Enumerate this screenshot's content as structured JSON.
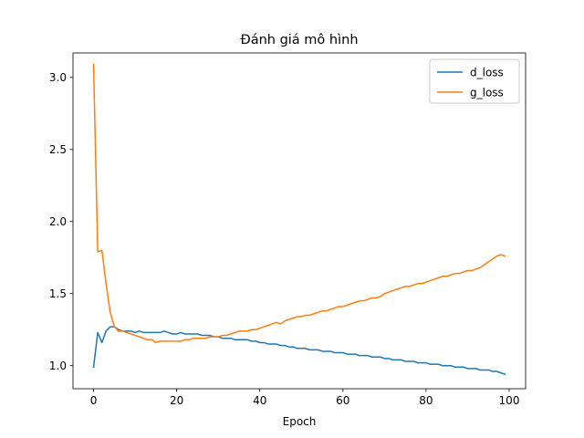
{
  "chart_data": {
    "type": "line",
    "title": "Đánh giá mô hình",
    "xlabel": "Epoch",
    "ylabel": "",
    "xlim": [
      -4.95,
      103.95
    ],
    "ylim": [
      0.84,
      3.17
    ],
    "xticks": [
      0,
      20,
      40,
      60,
      80,
      100
    ],
    "yticks": [
      1.0,
      1.5,
      2.0,
      2.5,
      3.0
    ],
    "xtick_labels": [
      "0",
      "20",
      "40",
      "60",
      "80",
      "100"
    ],
    "ytick_labels": [
      "1.0",
      "1.5",
      "2.0",
      "2.5",
      "3.0"
    ],
    "grid": false,
    "legend_position": "upper-right",
    "series": [
      {
        "name": "d_loss",
        "color": "#1f77b4",
        "values": [
          0.99,
          1.23,
          1.16,
          1.24,
          1.27,
          1.27,
          1.25,
          1.24,
          1.24,
          1.24,
          1.23,
          1.24,
          1.23,
          1.23,
          1.23,
          1.23,
          1.23,
          1.24,
          1.23,
          1.22,
          1.22,
          1.23,
          1.22,
          1.22,
          1.22,
          1.22,
          1.21,
          1.21,
          1.21,
          1.2,
          1.2,
          1.19,
          1.19,
          1.19,
          1.18,
          1.18,
          1.18,
          1.18,
          1.17,
          1.17,
          1.16,
          1.16,
          1.15,
          1.15,
          1.15,
          1.14,
          1.14,
          1.13,
          1.13,
          1.12,
          1.12,
          1.12,
          1.11,
          1.11,
          1.11,
          1.1,
          1.1,
          1.1,
          1.09,
          1.09,
          1.09,
          1.08,
          1.08,
          1.08,
          1.07,
          1.07,
          1.07,
          1.06,
          1.06,
          1.06,
          1.05,
          1.05,
          1.04,
          1.04,
          1.04,
          1.03,
          1.03,
          1.03,
          1.02,
          1.02,
          1.02,
          1.01,
          1.01,
          1.01,
          1.0,
          1.0,
          1.0,
          0.99,
          0.99,
          0.99,
          0.98,
          0.98,
          0.98,
          0.97,
          0.97,
          0.97,
          0.96,
          0.96,
          0.95,
          0.94
        ]
      },
      {
        "name": "g_loss",
        "color": "#ff7f0e",
        "values": [
          3.09,
          1.79,
          1.8,
          1.57,
          1.37,
          1.27,
          1.24,
          1.24,
          1.23,
          1.22,
          1.21,
          1.2,
          1.19,
          1.18,
          1.18,
          1.16,
          1.17,
          1.17,
          1.17,
          1.17,
          1.17,
          1.17,
          1.18,
          1.18,
          1.19,
          1.19,
          1.19,
          1.19,
          1.2,
          1.2,
          1.2,
          1.21,
          1.21,
          1.22,
          1.23,
          1.24,
          1.24,
          1.24,
          1.25,
          1.25,
          1.26,
          1.27,
          1.28,
          1.29,
          1.3,
          1.29,
          1.31,
          1.32,
          1.33,
          1.34,
          1.34,
          1.35,
          1.35,
          1.36,
          1.37,
          1.38,
          1.38,
          1.39,
          1.4,
          1.41,
          1.41,
          1.42,
          1.43,
          1.44,
          1.45,
          1.45,
          1.46,
          1.47,
          1.47,
          1.48,
          1.5,
          1.51,
          1.52,
          1.53,
          1.54,
          1.55,
          1.55,
          1.56,
          1.57,
          1.57,
          1.58,
          1.59,
          1.6,
          1.61,
          1.62,
          1.62,
          1.63,
          1.64,
          1.64,
          1.65,
          1.66,
          1.66,
          1.67,
          1.68,
          1.7,
          1.72,
          1.74,
          1.76,
          1.77,
          1.76
        ]
      }
    ]
  }
}
